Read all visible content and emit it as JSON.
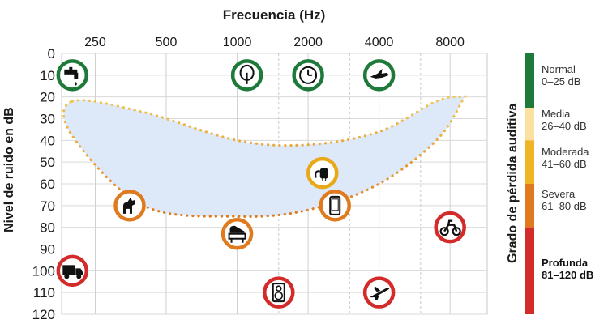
{
  "chart_data": {
    "type": "scatter",
    "title": "Frecuencia (Hz)",
    "xlabel": "Frecuencia (Hz)",
    "ylabel": "Nivel de ruido en dB",
    "x_ticks": [
      "250",
      "500",
      "1000",
      "2000",
      "4000",
      "8000"
    ],
    "y_ticks": [
      0,
      10,
      20,
      30,
      40,
      50,
      60,
      70,
      80,
      90,
      100,
      110,
      120
    ],
    "xlim": [
      180,
      11500
    ],
    "ylim": [
      0,
      120
    ],
    "x_scale": "log",
    "y_inverted": true,
    "grid": true,
    "speech_banana": {
      "upper": [
        [
          200,
          22
        ],
        [
          400,
          27
        ],
        [
          1000,
          40
        ],
        [
          2000,
          42
        ],
        [
          4000,
          36
        ],
        [
          7000,
          22
        ],
        [
          9000,
          20
        ]
      ],
      "lower": [
        [
          9000,
          22
        ],
        [
          7000,
          40
        ],
        [
          4000,
          60
        ],
        [
          2000,
          72
        ],
        [
          1000,
          75
        ],
        [
          400,
          70
        ],
        [
          200,
          38
        ]
      ]
    },
    "sounds": [
      {
        "name": "grifo",
        "icon": "faucet-icon",
        "x": 200,
        "y": 10,
        "ring": "#1e7a3a"
      },
      {
        "name": "arbol",
        "icon": "tree-icon",
        "x": 1100,
        "y": 10,
        "ring": "#1e7a3a"
      },
      {
        "name": "reloj",
        "icon": "clock-icon",
        "x": 2000,
        "y": 10,
        "ring": "#1e7a3a"
      },
      {
        "name": "pajaro",
        "icon": "bird-icon",
        "x": 4000,
        "y": 10,
        "ring": "#1e7a3a"
      },
      {
        "name": "aspiradora",
        "icon": "vacuum-icon",
        "x": 2300,
        "y": 55,
        "ring": "#e8a817"
      },
      {
        "name": "perro",
        "icon": "dog-icon",
        "x": 350,
        "y": 70,
        "ring": "#e07a1e"
      },
      {
        "name": "telefono",
        "icon": "phone-icon",
        "x": 2600,
        "y": 70,
        "ring": "#e07a1e"
      },
      {
        "name": "piano",
        "icon": "piano-icon",
        "x": 1000,
        "y": 83,
        "ring": "#e07a1e"
      },
      {
        "name": "moto",
        "icon": "motorcycle-icon",
        "x": 8000,
        "y": 80,
        "ring": "#d32a2a"
      },
      {
        "name": "camion",
        "icon": "truck-icon",
        "x": 200,
        "y": 100,
        "ring": "#d32a2a"
      },
      {
        "name": "altavoz",
        "icon": "speaker-icon",
        "x": 1500,
        "y": 110,
        "ring": "#d32a2a"
      },
      {
        "name": "avion",
        "icon": "airplane-icon",
        "x": 4000,
        "y": 110,
        "ring": "#d32a2a"
      }
    ]
  },
  "grades": {
    "title": "Grado de pérdida auditiva",
    "items": [
      {
        "name": "Normal",
        "range": "0–25 dB",
        "color": "#1e7a3a",
        "from": 0,
        "to": 25
      },
      {
        "name": "Media",
        "range": "26–40 dB",
        "color": "#fbe0a0",
        "from": 25,
        "to": 40
      },
      {
        "name": "Moderada",
        "range": "41–60 dB",
        "color": "#f0b526",
        "from": 40,
        "to": 60
      },
      {
        "name": "Severa",
        "range": "61–80 dB",
        "color": "#e07a1e",
        "from": 60,
        "to": 80
      },
      {
        "name": "Profunda",
        "range": "81–120 dB",
        "color": "#d32a2a",
        "from": 80,
        "to": 120
      }
    ]
  }
}
